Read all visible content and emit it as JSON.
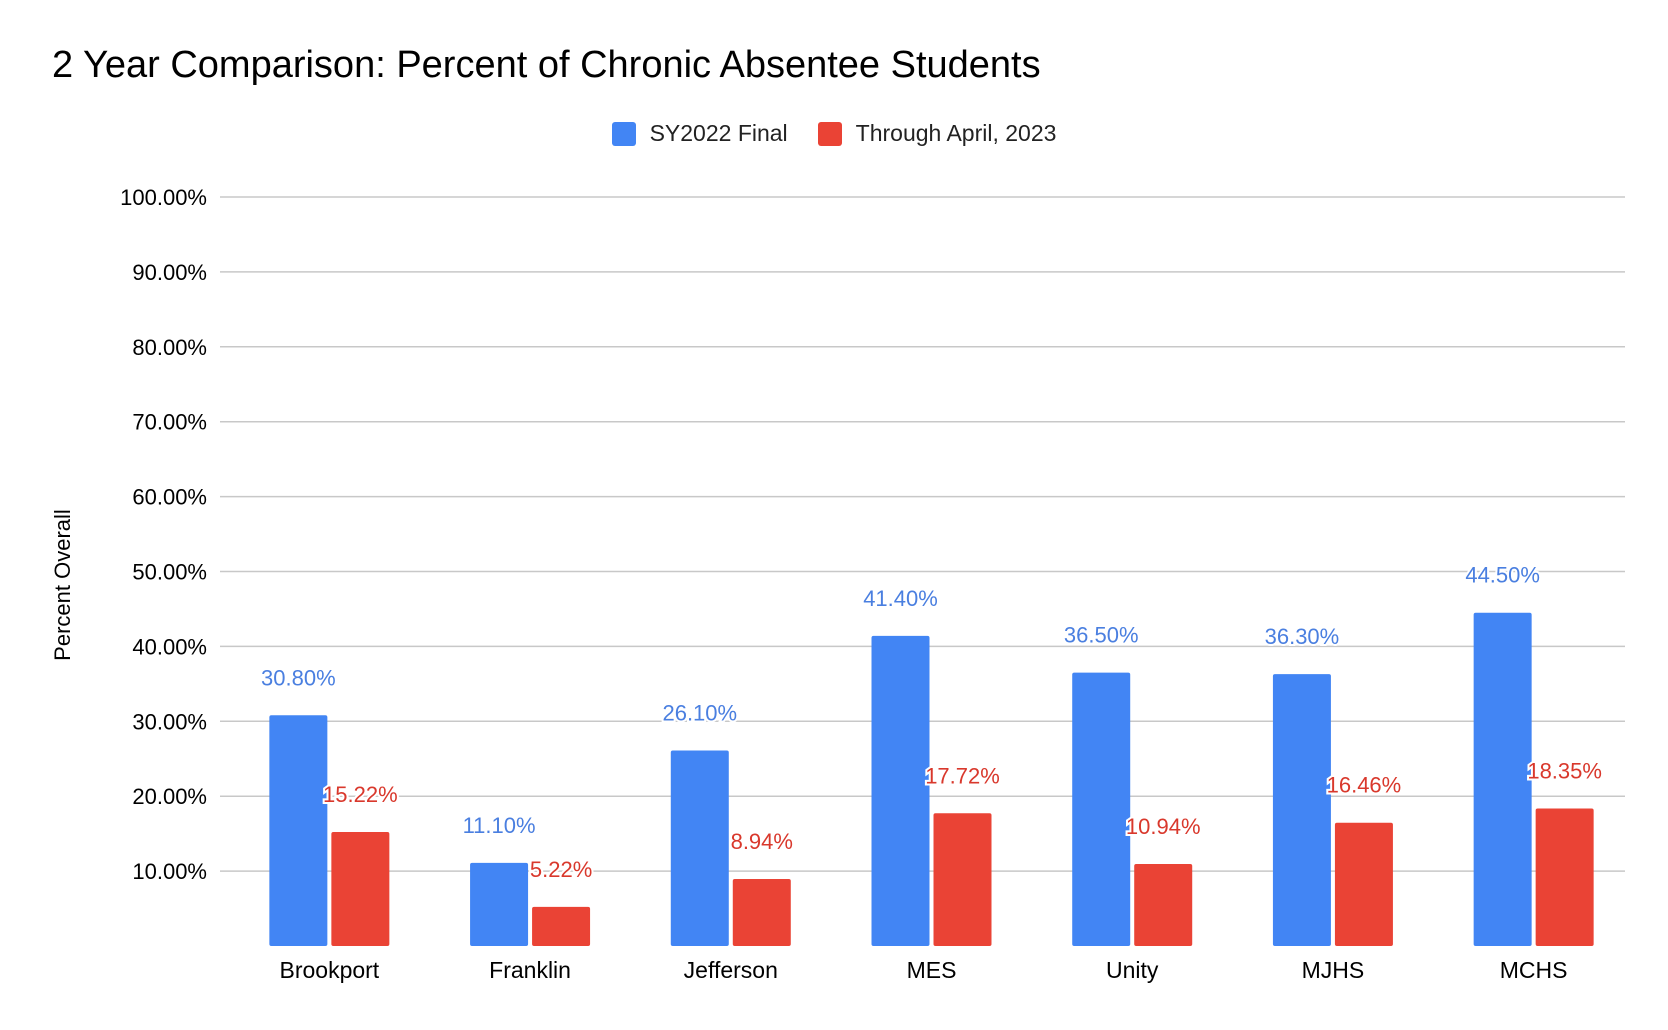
{
  "chart_data": {
    "type": "bar",
    "title": "2 Year Comparison: Percent of Chronic Absentee Students",
    "xlabel": "",
    "ylabel": "Percent Overall",
    "ylim": [
      0,
      100
    ],
    "yticks": [
      10,
      20,
      30,
      40,
      50,
      60,
      70,
      80,
      90,
      100
    ],
    "ytick_labels": [
      "10.00%",
      "20.00%",
      "30.00%",
      "40.00%",
      "50.00%",
      "60.00%",
      "70.00%",
      "80.00%",
      "90.00%",
      "100.00%"
    ],
    "grid": true,
    "legend_position": "top-center",
    "categories": [
      "Brookport",
      "Franklin",
      "Jefferson",
      "MES",
      "Unity",
      "MJHS",
      "MCHS"
    ],
    "series": [
      {
        "name": "SY2022 Final",
        "color": "#4285f4",
        "label_color": "#4a7fe0",
        "values": [
          30.8,
          11.1,
          26.1,
          41.4,
          36.5,
          36.3,
          44.5
        ],
        "labels": [
          "30.80%",
          "11.10%",
          "26.10%",
          "41.40%",
          "36.50%",
          "36.30%",
          "44.50%"
        ]
      },
      {
        "name": "Through April, 2023",
        "color": "#ea4335",
        "label_color": "#d9382c",
        "values": [
          15.22,
          5.22,
          8.94,
          17.72,
          10.94,
          16.46,
          18.35
        ],
        "labels": [
          "15.22%",
          "5.22%",
          "8.94%",
          "17.72%",
          "10.94%",
          "16.46%",
          "18.35%"
        ]
      }
    ]
  }
}
